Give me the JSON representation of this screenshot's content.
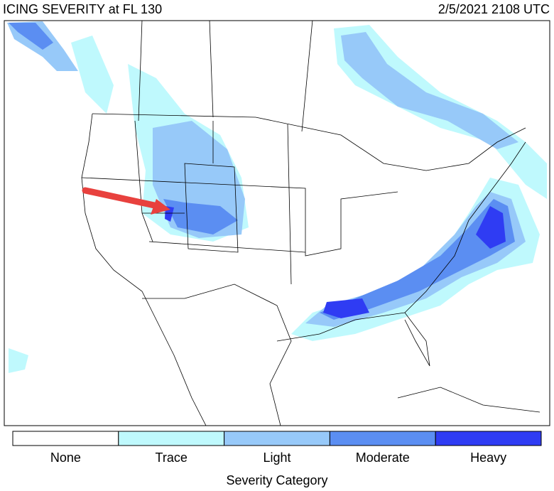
{
  "header": {
    "title": "ICING SEVERITY at FL 130",
    "timestamp": "2/5/2021 2108 UTC"
  },
  "legend": {
    "title": "Severity Category",
    "items": [
      {
        "label": "None",
        "color": "#ffffff"
      },
      {
        "label": "Trace",
        "color": "#bff9fd"
      },
      {
        "label": "Light",
        "color": "#97c9f9"
      },
      {
        "label": "Moderate",
        "color": "#5b8ef2"
      },
      {
        "label": "Heavy",
        "color": "#2f3cf3"
      }
    ]
  }
}
